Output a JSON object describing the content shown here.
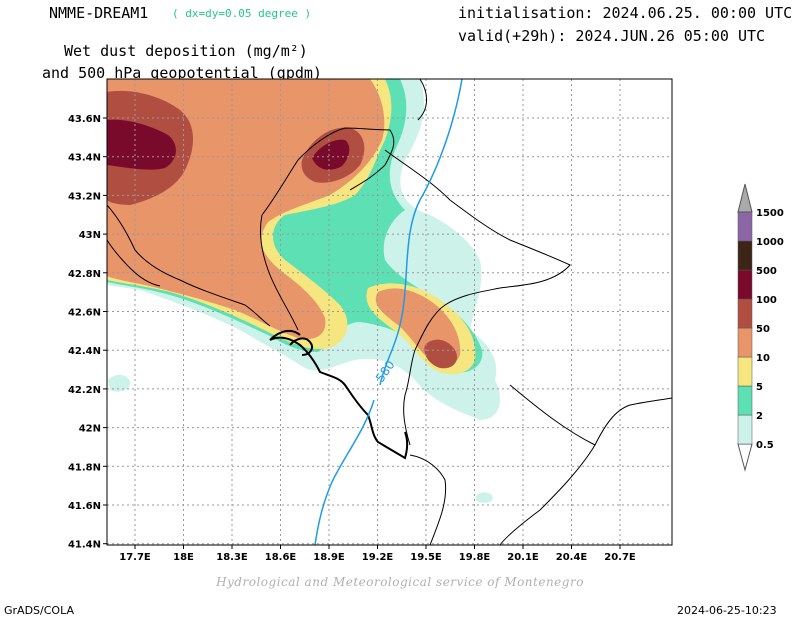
{
  "header": {
    "model_name": "NMME-DREAM1",
    "model_resolution": "( dx=dy=0.05 degree )",
    "initialisation": "initialisation: 2024.06.25. 00:00 UTC",
    "valid": "valid(+29h): 2024.JUN.26 05:00 UTC",
    "title_line1": "Wet dust deposition (mg/m²)",
    "title_line2": "and 500 hPa geopotential (gpdm)"
  },
  "map": {
    "lat_labels": [
      "43.6N",
      "43.4N",
      "43.2N",
      "43N",
      "42.8N",
      "42.6N",
      "42.4N",
      "42.2N",
      "42N",
      "41.8N",
      "41.6N",
      "41.4N"
    ],
    "lon_labels": [
      "17.7E",
      "18E",
      "18.3E",
      "18.6E",
      "18.9E",
      "19.2E",
      "19.5E",
      "19.8E",
      "20.1E",
      "20.4E",
      "20.7E"
    ],
    "contour_label": "580",
    "colors": {
      "c05": "#cdf2ea",
      "c2": "#5ce0b4",
      "c5": "#f5e67f",
      "c10": "#e9956a",
      "c50": "#b04e42",
      "c100": "#7a0a2c",
      "coast": "#000000",
      "border": "#000000",
      "contour": "#1e9be8"
    }
  },
  "legend": {
    "levels": [
      "0.5",
      "2",
      "5",
      "10",
      "50",
      "100",
      "500",
      "1000",
      "1500"
    ],
    "colors": [
      "#cdf2ea",
      "#5ce0b4",
      "#f5e67f",
      "#e9956a",
      "#b04e42",
      "#7a0a2c",
      "#3c2416",
      "#8b66a6",
      "#aaaaaa"
    ]
  },
  "footer": {
    "credit": "Hydrological and Meteorological service of Montenegro",
    "software": "GrADS/COLA",
    "timestamp": "2024-06-25-10:23"
  }
}
